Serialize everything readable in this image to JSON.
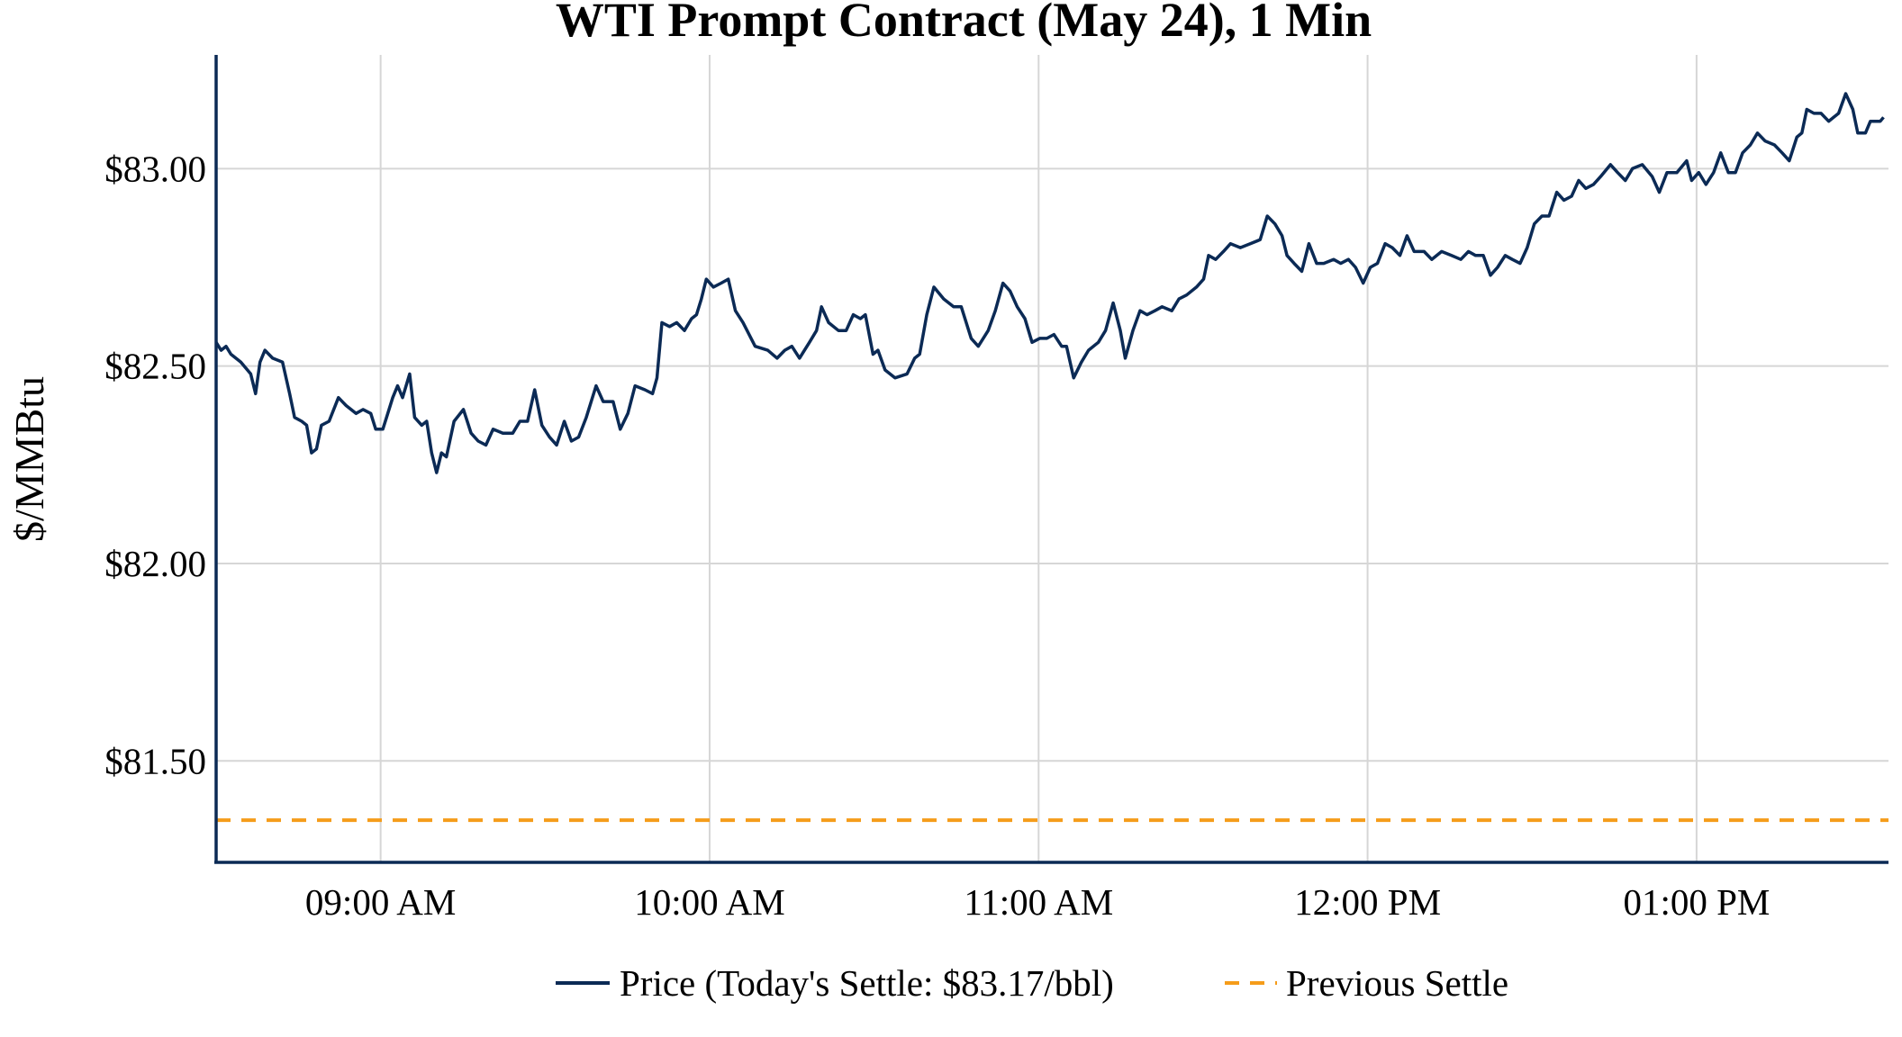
{
  "chart_data": {
    "type": "line",
    "title": "WTI Prompt Contract (May 24), 1 Min",
    "xlabel": "",
    "ylabel": "$/MMBtu",
    "x_unit": "minutes since 08:30 AM",
    "xlim": [
      0,
      305
    ],
    "ylim": [
      81.243,
      83.288
    ],
    "grid": true,
    "legend_placement": "bottom-center",
    "x_ticks": [
      {
        "value": 30,
        "label": "09:00 AM"
      },
      {
        "value": 90,
        "label": "10:00 AM"
      },
      {
        "value": 150,
        "label": "11:00 AM"
      },
      {
        "value": 210,
        "label": "12:00 PM"
      },
      {
        "value": 270,
        "label": "01:00 PM"
      }
    ],
    "y_ticks": [
      {
        "value": 83.0,
        "label": "$83.00"
      },
      {
        "value": 82.5,
        "label": "$82.50"
      },
      {
        "value": 82.0,
        "label": "$82.00"
      },
      {
        "value": 81.5,
        "label": "$81.50"
      }
    ],
    "series": [
      {
        "name": "Price (Today's Settle: $83.17/bbl)",
        "color": "#0b2a55",
        "style": "solid",
        "points": [
          [
            0,
            82.56
          ],
          [
            0.9,
            82.54
          ],
          [
            1.8,
            82.55
          ],
          [
            2.7,
            82.53
          ],
          [
            4.5,
            82.51
          ],
          [
            6.3,
            82.48
          ],
          [
            7.2,
            82.43
          ],
          [
            8.0,
            82.51
          ],
          [
            8.9,
            82.54
          ],
          [
            10.3,
            82.52
          ],
          [
            12.1,
            82.51
          ],
          [
            13.4,
            82.43
          ],
          [
            14.3,
            82.37
          ],
          [
            15.6,
            82.36
          ],
          [
            16.5,
            82.35
          ],
          [
            17.4,
            82.28
          ],
          [
            18.3,
            82.29
          ],
          [
            19.2,
            82.35
          ],
          [
            20.6,
            82.36
          ],
          [
            22.3,
            82.42
          ],
          [
            23.7,
            82.4
          ],
          [
            25.5,
            82.38
          ],
          [
            26.8,
            82.39
          ],
          [
            28.2,
            82.38
          ],
          [
            29.1,
            82.34
          ],
          [
            30.4,
            82.34
          ],
          [
            31.3,
            82.38
          ],
          [
            32.2,
            82.42
          ],
          [
            33.1,
            82.45
          ],
          [
            34.0,
            82.42
          ],
          [
            35.3,
            82.48
          ],
          [
            36.2,
            82.37
          ],
          [
            37.5,
            82.35
          ],
          [
            38.4,
            82.36
          ],
          [
            39.3,
            82.28
          ],
          [
            40.2,
            82.23
          ],
          [
            41.1,
            82.28
          ],
          [
            42.0,
            82.27
          ],
          [
            43.4,
            82.36
          ],
          [
            45.1,
            82.39
          ],
          [
            46.5,
            82.33
          ],
          [
            47.8,
            82.31
          ],
          [
            49.2,
            82.3
          ],
          [
            50.5,
            82.34
          ],
          [
            52.3,
            82.33
          ],
          [
            54.1,
            82.33
          ],
          [
            55.4,
            82.36
          ],
          [
            56.8,
            82.36
          ],
          [
            58.1,
            82.44
          ],
          [
            59.4,
            82.35
          ],
          [
            60.8,
            82.32
          ],
          [
            62.1,
            82.3
          ],
          [
            63.5,
            82.36
          ],
          [
            64.8,
            82.31
          ],
          [
            66.1,
            82.32
          ],
          [
            67.5,
            82.37
          ],
          [
            69.3,
            82.45
          ],
          [
            70.6,
            82.41
          ],
          [
            72.4,
            82.41
          ],
          [
            73.7,
            82.34
          ],
          [
            75.1,
            82.38
          ],
          [
            76.4,
            82.45
          ],
          [
            78.2,
            82.44
          ],
          [
            79.6,
            82.43
          ],
          [
            80.4,
            82.47
          ],
          [
            81.3,
            82.61
          ],
          [
            82.7,
            82.6
          ],
          [
            84.0,
            82.61
          ],
          [
            85.4,
            82.59
          ],
          [
            86.7,
            82.62
          ],
          [
            87.6,
            82.63
          ],
          [
            88.5,
            82.67
          ],
          [
            89.4,
            82.72
          ],
          [
            90.7,
            82.7
          ],
          [
            92.1,
            82.71
          ],
          [
            93.4,
            82.72
          ],
          [
            94.7,
            82.64
          ],
          [
            96.1,
            82.61
          ],
          [
            98.3,
            82.55
          ],
          [
            100.6,
            82.54
          ],
          [
            102.3,
            82.52
          ],
          [
            103.7,
            82.54
          ],
          [
            105.0,
            82.55
          ],
          [
            106.4,
            82.52
          ],
          [
            108.2,
            82.56
          ],
          [
            109.5,
            82.59
          ],
          [
            110.4,
            82.65
          ],
          [
            111.7,
            82.61
          ],
          [
            113.5,
            82.59
          ],
          [
            114.9,
            82.59
          ],
          [
            116.2,
            82.63
          ],
          [
            117.5,
            82.62
          ],
          [
            118.4,
            82.63
          ],
          [
            119.8,
            82.53
          ],
          [
            120.7,
            82.54
          ],
          [
            122.0,
            82.49
          ],
          [
            123.8,
            82.47
          ],
          [
            126.0,
            82.48
          ],
          [
            127.4,
            82.52
          ],
          [
            128.3,
            82.53
          ],
          [
            129.6,
            82.63
          ],
          [
            130.9,
            82.7
          ],
          [
            132.7,
            82.67
          ],
          [
            134.5,
            82.65
          ],
          [
            135.9,
            82.65
          ],
          [
            137.7,
            82.57
          ],
          [
            139.0,
            82.55
          ],
          [
            140.8,
            82.59
          ],
          [
            142.1,
            82.64
          ],
          [
            143.5,
            82.71
          ],
          [
            144.8,
            82.69
          ],
          [
            146.1,
            82.65
          ],
          [
            147.5,
            82.62
          ],
          [
            148.8,
            82.56
          ],
          [
            150.2,
            82.57
          ],
          [
            151.5,
            82.57
          ],
          [
            152.8,
            82.58
          ],
          [
            154.2,
            82.55
          ],
          [
            155.1,
            82.55
          ],
          [
            156.4,
            82.47
          ],
          [
            157.8,
            82.51
          ],
          [
            159.1,
            82.54
          ],
          [
            160.9,
            82.56
          ],
          [
            162.2,
            82.59
          ],
          [
            163.6,
            82.66
          ],
          [
            164.9,
            82.59
          ],
          [
            165.8,
            82.52
          ],
          [
            167.2,
            82.59
          ],
          [
            168.5,
            82.64
          ],
          [
            169.8,
            82.63
          ],
          [
            171.2,
            82.64
          ],
          [
            172.5,
            82.65
          ],
          [
            174.3,
            82.64
          ],
          [
            175.6,
            82.67
          ],
          [
            177.0,
            82.68
          ],
          [
            178.8,
            82.7
          ],
          [
            180.1,
            82.72
          ],
          [
            181.0,
            82.78
          ],
          [
            182.3,
            82.77
          ],
          [
            183.7,
            82.79
          ],
          [
            185.0,
            82.81
          ],
          [
            186.8,
            82.8
          ],
          [
            188.6,
            82.81
          ],
          [
            190.4,
            82.82
          ],
          [
            191.7,
            82.88
          ],
          [
            193.1,
            82.86
          ],
          [
            194.4,
            82.83
          ],
          [
            195.3,
            82.78
          ],
          [
            196.6,
            82.76
          ],
          [
            198.0,
            82.74
          ],
          [
            199.3,
            82.81
          ],
          [
            200.7,
            82.76
          ],
          [
            202.0,
            82.76
          ],
          [
            203.8,
            82.77
          ],
          [
            205.1,
            82.76
          ],
          [
            206.5,
            82.77
          ],
          [
            207.8,
            82.75
          ],
          [
            209.2,
            82.71
          ],
          [
            210.5,
            82.75
          ],
          [
            211.8,
            82.76
          ],
          [
            213.2,
            82.81
          ],
          [
            214.5,
            82.8
          ],
          [
            215.9,
            82.78
          ],
          [
            217.2,
            82.83
          ],
          [
            218.5,
            82.79
          ],
          [
            220.3,
            82.79
          ],
          [
            221.7,
            82.77
          ],
          [
            223.5,
            82.79
          ],
          [
            225.3,
            82.78
          ],
          [
            227.0,
            82.77
          ],
          [
            228.4,
            82.79
          ],
          [
            229.7,
            82.78
          ],
          [
            231.1,
            82.78
          ],
          [
            232.4,
            82.73
          ],
          [
            233.7,
            82.75
          ],
          [
            235.1,
            82.78
          ],
          [
            236.4,
            82.77
          ],
          [
            237.8,
            82.76
          ],
          [
            239.1,
            82.8
          ],
          [
            240.4,
            82.86
          ],
          [
            241.8,
            82.88
          ],
          [
            243.1,
            82.88
          ],
          [
            244.5,
            82.94
          ],
          [
            245.8,
            82.92
          ],
          [
            247.2,
            82.93
          ],
          [
            248.5,
            82.97
          ],
          [
            249.8,
            82.95
          ],
          [
            251.2,
            82.96
          ],
          [
            252.5,
            82.98
          ],
          [
            254.3,
            83.01
          ],
          [
            255.6,
            82.99
          ],
          [
            257.0,
            82.97
          ],
          [
            258.3,
            83.0
          ],
          [
            260.1,
            83.01
          ],
          [
            261.9,
            82.98
          ],
          [
            263.2,
            82.94
          ],
          [
            264.6,
            82.99
          ],
          [
            266.4,
            82.99
          ],
          [
            268.2,
            83.02
          ],
          [
            269.1,
            82.97
          ],
          [
            270.4,
            82.99
          ],
          [
            271.7,
            82.96
          ],
          [
            273.1,
            82.99
          ],
          [
            274.4,
            83.04
          ],
          [
            275.8,
            82.99
          ],
          [
            277.1,
            82.99
          ],
          [
            278.4,
            83.04
          ],
          [
            279.8,
            83.06
          ],
          [
            281.1,
            83.09
          ],
          [
            282.5,
            83.07
          ],
          [
            284.2,
            83.06
          ],
          [
            285.6,
            83.04
          ],
          [
            286.9,
            83.02
          ],
          [
            288.3,
            83.08
          ],
          [
            289.2,
            83.09
          ],
          [
            290.1,
            83.15
          ],
          [
            291.4,
            83.14
          ],
          [
            292.7,
            83.14
          ],
          [
            294.1,
            83.12
          ],
          [
            295.0,
            83.13
          ],
          [
            295.9,
            83.14
          ],
          [
            297.2,
            83.19
          ],
          [
            298.5,
            83.15
          ],
          [
            299.4,
            83.09
          ],
          [
            300.8,
            83.09
          ],
          [
            301.7,
            83.12
          ],
          [
            303.5,
            83.12
          ],
          [
            304.1,
            83.13
          ]
        ]
      },
      {
        "name": "Previous Settle",
        "color": "#f59c1a",
        "style": "dashed",
        "points": [
          [
            0,
            81.35
          ],
          [
            305,
            81.35
          ]
        ]
      }
    ]
  }
}
